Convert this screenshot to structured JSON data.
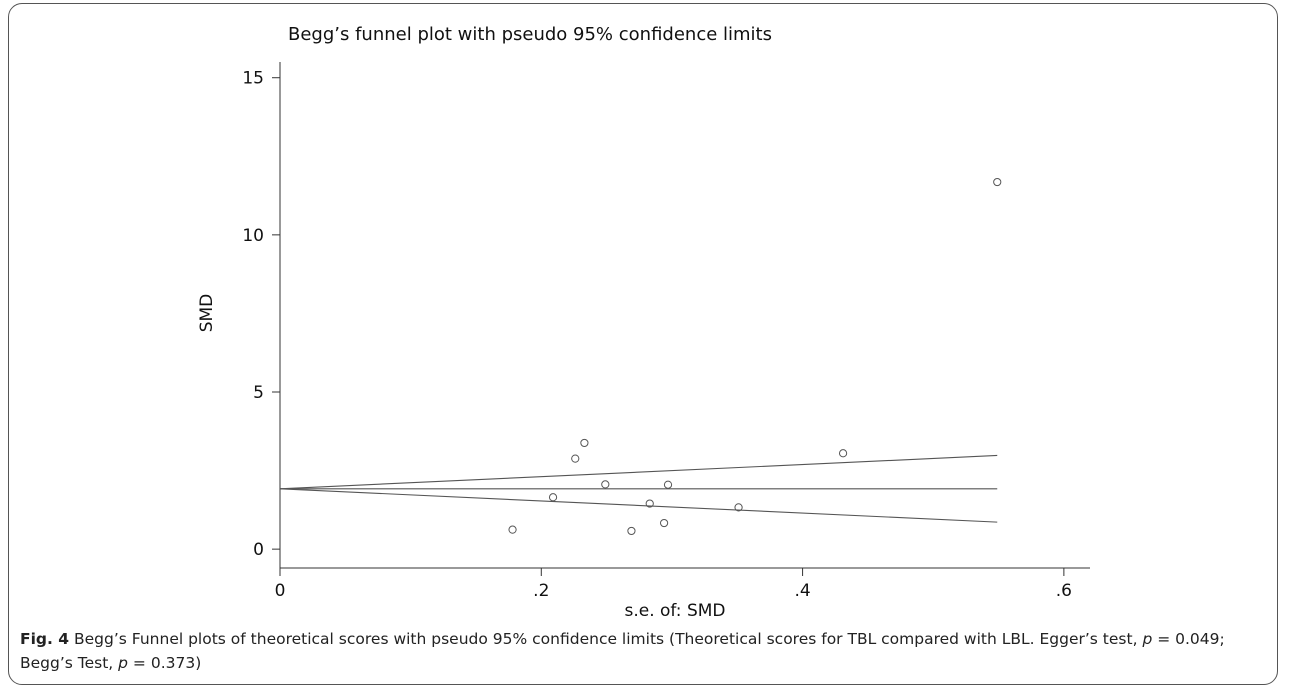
{
  "chart_data": {
    "type": "scatter",
    "title": "Begg’s funnel plot with pseudo 95% confidence limits",
    "xlabel": "s.e. of: SMD",
    "ylabel": "SMD",
    "xlim": [
      0,
      0.62
    ],
    "ylim": [
      -0.6,
      15.5
    ],
    "x_ticks": [
      0,
      0.2,
      0.4,
      0.6
    ],
    "x_tick_labels": [
      "0",
      ".2",
      ".4",
      ".6"
    ],
    "y_ticks": [
      0,
      5,
      10,
      15
    ],
    "y_tick_labels": [
      "0",
      "5",
      "10",
      "15"
    ],
    "grid": false,
    "series": [
      {
        "points": [
          {
            "x": 0.178,
            "y": 0.62
          },
          {
            "x": 0.209,
            "y": 1.65
          },
          {
            "x": 0.226,
            "y": 2.88
          },
          {
            "x": 0.233,
            "y": 3.38
          },
          {
            "x": 0.249,
            "y": 2.06
          },
          {
            "x": 0.269,
            "y": 0.58
          },
          {
            "x": 0.283,
            "y": 1.45
          },
          {
            "x": 0.294,
            "y": 0.83
          },
          {
            "x": 0.297,
            "y": 2.05
          },
          {
            "x": 0.351,
            "y": 1.33
          },
          {
            "x": 0.431,
            "y": 3.05
          },
          {
            "x": 0.549,
            "y": 11.68
          }
        ]
      }
    ],
    "lines": [
      {
        "from": [
          0,
          1.92
        ],
        "to": [
          0.549,
          1.92
        ]
      },
      {
        "from": [
          0,
          1.92
        ],
        "to": [
          0.549,
          2.98
        ]
      },
      {
        "from": [
          0,
          1.92
        ],
        "to": [
          0.549,
          0.86
        ]
      }
    ]
  },
  "caption": {
    "label": "Fig. 4",
    "text": " Begg’s Funnel plots of theoretical scores with pseudo 95% confidence limits (Theoretical scores for TBL compared with LBL. Egger’s test, ",
    "p1_var": "p",
    "p1_text": " = 0.049; Begg’s Test, ",
    "p2_var": "p",
    "p2_text": " = 0.373)"
  }
}
